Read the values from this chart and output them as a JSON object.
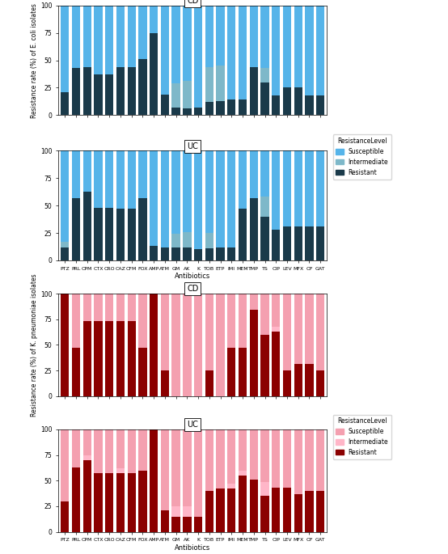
{
  "antibiotics": [
    "PTZ",
    "PRL",
    "CPM",
    "CTX",
    "CRO",
    "CAZ",
    "CFM",
    "FOX",
    "AMP",
    "ATM",
    "GM",
    "AK",
    "K",
    "TOB",
    "ETP",
    "IMI",
    "MEM",
    "TMP",
    "TS",
    "CIP",
    "LEV",
    "MFX",
    "OF",
    "GAT"
  ],
  "ecoli_CD": {
    "resistant": [
      21,
      43,
      44,
      37,
      37,
      44,
      44,
      51,
      75,
      19,
      7,
      6,
      7,
      12,
      13,
      14,
      14,
      44,
      30,
      18,
      25,
      25,
      18,
      18
    ],
    "intermediate": [
      0,
      0,
      0,
      0,
      0,
      0,
      0,
      0,
      0,
      0,
      22,
      25,
      0,
      32,
      32,
      0,
      0,
      0,
      13,
      0,
      0,
      0,
      0,
      0
    ],
    "susceptible": [
      79,
      57,
      56,
      63,
      63,
      56,
      56,
      49,
      25,
      81,
      71,
      69,
      93,
      56,
      55,
      86,
      86,
      56,
      57,
      82,
      75,
      75,
      82,
      82
    ]
  },
  "ecoli_UC": {
    "resistant": [
      12,
      57,
      63,
      48,
      48,
      47,
      47,
      57,
      13,
      12,
      12,
      12,
      10,
      11,
      12,
      12,
      47,
      57,
      40,
      28,
      31,
      31,
      31,
      31
    ],
    "intermediate": [
      5,
      0,
      0,
      0,
      0,
      0,
      0,
      0,
      0,
      0,
      12,
      14,
      0,
      14,
      0,
      0,
      0,
      0,
      18,
      0,
      0,
      0,
      0,
      0
    ],
    "susceptible": [
      83,
      43,
      37,
      52,
      52,
      53,
      53,
      43,
      87,
      88,
      76,
      74,
      90,
      75,
      88,
      88,
      53,
      43,
      42,
      72,
      69,
      69,
      69,
      69
    ]
  },
  "kpneumo_CD": {
    "resistant": [
      100,
      47,
      73,
      73,
      73,
      73,
      73,
      47,
      100,
      25,
      0,
      0,
      0,
      25,
      0,
      47,
      47,
      84,
      60,
      63,
      25,
      31,
      31,
      25
    ],
    "intermediate": [
      0,
      0,
      0,
      0,
      0,
      0,
      0,
      0,
      0,
      0,
      0,
      0,
      0,
      0,
      0,
      0,
      0,
      0,
      0,
      5,
      0,
      0,
      0,
      0
    ],
    "susceptible": [
      0,
      53,
      27,
      27,
      27,
      27,
      27,
      53,
      0,
      75,
      100,
      100,
      100,
      75,
      100,
      53,
      53,
      16,
      40,
      32,
      75,
      69,
      69,
      75
    ]
  },
  "kpneumo_UC": {
    "resistant": [
      30,
      63,
      70,
      57,
      57,
      57,
      57,
      60,
      100,
      21,
      15,
      15,
      15,
      40,
      42,
      42,
      55,
      51,
      35,
      43,
      43,
      37,
      40,
      40
    ],
    "intermediate": [
      0,
      0,
      5,
      0,
      0,
      5,
      0,
      0,
      0,
      0,
      10,
      10,
      0,
      0,
      0,
      5,
      5,
      0,
      14,
      0,
      0,
      0,
      0,
      0
    ],
    "susceptible": [
      70,
      37,
      25,
      43,
      43,
      38,
      43,
      40,
      0,
      79,
      75,
      75,
      85,
      60,
      58,
      53,
      40,
      49,
      51,
      57,
      57,
      63,
      60,
      60
    ]
  },
  "ecoli_colors": {
    "susceptible": "#56b4e9",
    "intermediate": "#7eb8c9",
    "resistant": "#1a3a4a"
  },
  "kpneumo_colors": {
    "susceptible": "#f4a0b0",
    "intermediate": "#ffb6c8",
    "resistant": "#8b0000"
  },
  "ecoli_ylabel": "Resistance rate (%) of E. coli isolates",
  "kpneumo_ylabel": "Resistance rate (%) of K. pneumoniae isolates",
  "xlabel": "Antibiotics",
  "cd_title": "CD",
  "uc_title": "UC"
}
